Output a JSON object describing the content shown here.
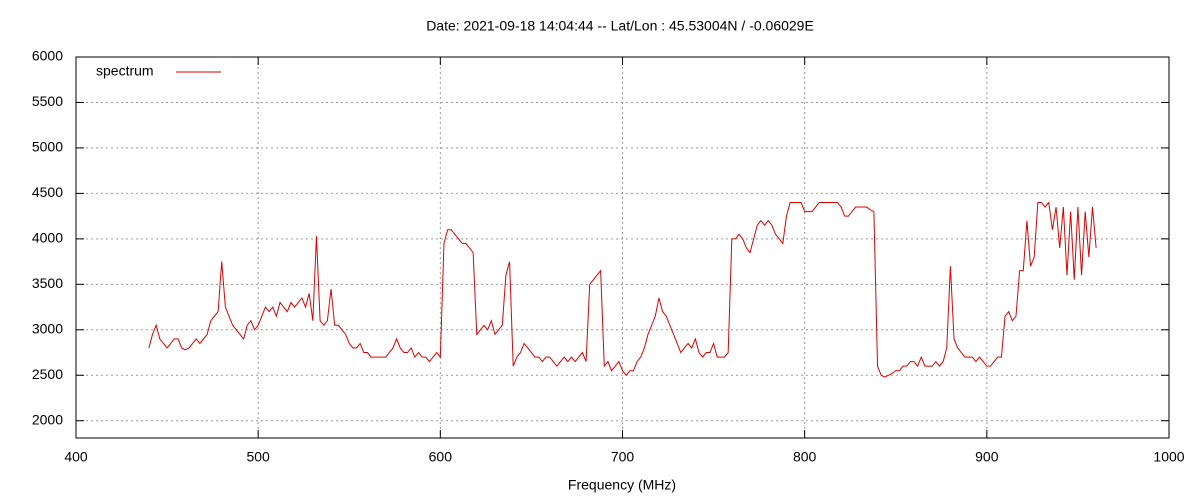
{
  "chart_data": {
    "type": "line",
    "title": "Date: 2021-09-18 14:04:44  --  Lat/Lon : 45.53004N / -0.06029E",
    "x_label": "Frequency (MHz)",
    "xlim": [
      400,
      1000
    ],
    "xticks": [
      400,
      500,
      600,
      700,
      800,
      900,
      1000
    ],
    "ylim": [
      1810,
      6000
    ],
    "yticks": [
      2000,
      2500,
      3000,
      3500,
      4000,
      4500,
      5000,
      5500,
      6000
    ],
    "grid": true,
    "legend": "top-left",
    "x": [
      440,
      442,
      444,
      446,
      448,
      450,
      452,
      454,
      456,
      458,
      460,
      462,
      464,
      466,
      468,
      470,
      472,
      474,
      476,
      478,
      480,
      482,
      484,
      486,
      488,
      490,
      492,
      494,
      496,
      498,
      500,
      502,
      504,
      506,
      508,
      510,
      512,
      514,
      516,
      518,
      520,
      522,
      524,
      526,
      528,
      530,
      532,
      534,
      536,
      538,
      540,
      542,
      544,
      546,
      548,
      550,
      552,
      554,
      556,
      558,
      560,
      562,
      564,
      566,
      568,
      570,
      572,
      574,
      576,
      578,
      580,
      582,
      584,
      586,
      588,
      590,
      592,
      594,
      596,
      598,
      600,
      602,
      604,
      606,
      608,
      610,
      612,
      614,
      616,
      618,
      620,
      622,
      624,
      626,
      628,
      630,
      632,
      634,
      636,
      638,
      640,
      642,
      644,
      646,
      648,
      650,
      652,
      654,
      656,
      658,
      660,
      662,
      664,
      666,
      668,
      670,
      672,
      674,
      676,
      678,
      680,
      682,
      684,
      686,
      688,
      690,
      692,
      694,
      696,
      698,
      700,
      702,
      704,
      706,
      708,
      710,
      712,
      714,
      716,
      718,
      720,
      722,
      724,
      726,
      728,
      730,
      732,
      734,
      736,
      738,
      740,
      742,
      744,
      746,
      748,
      750,
      752,
      754,
      756,
      758,
      760,
      762,
      764,
      766,
      768,
      770,
      772,
      774,
      776,
      778,
      780,
      782,
      784,
      786,
      788,
      790,
      792,
      794,
      796,
      798,
      800,
      802,
      804,
      806,
      808,
      810,
      812,
      814,
      816,
      818,
      820,
      822,
      824,
      826,
      828,
      830,
      832,
      834,
      836,
      838,
      840,
      842,
      844,
      846,
      848,
      850,
      852,
      854,
      856,
      858,
      860,
      862,
      864,
      866,
      868,
      870,
      872,
      874,
      876,
      878,
      880,
      882,
      884,
      886,
      888,
      890,
      892,
      894,
      896,
      898,
      900,
      902,
      904,
      906,
      908,
      910,
      912,
      914,
      916,
      918,
      920,
      922,
      924,
      926,
      928,
      930,
      932,
      934,
      936,
      938,
      940,
      942,
      944,
      946,
      948,
      950,
      952,
      954,
      956,
      958,
      960
    ],
    "series": [
      {
        "name": "spectrum",
        "color": "#e00000",
        "values": [
          2800,
          2950,
          3050,
          2900,
          2850,
          2800,
          2850,
          2900,
          2900,
          2800,
          2780,
          2800,
          2850,
          2900,
          2850,
          2900,
          2950,
          3100,
          3150,
          3200,
          3750,
          3250,
          3150,
          3050,
          3000,
          2950,
          2900,
          3050,
          3100,
          3000,
          3050,
          3150,
          3250,
          3200,
          3250,
          3150,
          3300,
          3250,
          3200,
          3300,
          3250,
          3300,
          3350,
          3250,
          3400,
          3100,
          4030,
          3100,
          3050,
          3100,
          3450,
          3050,
          3050,
          3000,
          2950,
          2850,
          2800,
          2800,
          2850,
          2750,
          2750,
          2700,
          2700,
          2700,
          2700,
          2700,
          2750,
          2800,
          2900,
          2800,
          2750,
          2750,
          2800,
          2700,
          2750,
          2700,
          2700,
          2650,
          2700,
          2750,
          2700,
          3950,
          4100,
          4100,
          4050,
          4000,
          3950,
          3950,
          3900,
          3850,
          2950,
          3000,
          3050,
          3000,
          3100,
          2950,
          3000,
          3050,
          3600,
          3750,
          2600,
          2700,
          2750,
          2850,
          2800,
          2750,
          2700,
          2700,
          2650,
          2700,
          2700,
          2650,
          2600,
          2650,
          2700,
          2650,
          2700,
          2650,
          2700,
          2750,
          2650,
          3500,
          3550,
          3600,
          3650,
          2600,
          2650,
          2550,
          2600,
          2650,
          2550,
          2500,
          2550,
          2550,
          2650,
          2700,
          2800,
          2950,
          3050,
          3150,
          3350,
          3200,
          3150,
          3050,
          2950,
          2850,
          2750,
          2800,
          2850,
          2800,
          2900,
          2750,
          2700,
          2750,
          2750,
          2850,
          2700,
          2700,
          2700,
          2750,
          4000,
          4000,
          4050,
          4000,
          3900,
          3850,
          4000,
          4150,
          4200,
          4150,
          4200,
          4150,
          4050,
          4000,
          3950,
          4250,
          4400,
          4400,
          4400,
          4400,
          4300,
          4300,
          4300,
          4350,
          4400,
          4400,
          4400,
          4400,
          4400,
          4400,
          4350,
          4250,
          4250,
          4300,
          4350,
          4350,
          4350,
          4350,
          4320,
          4300,
          2600,
          2500,
          2480,
          2500,
          2520,
          2550,
          2550,
          2600,
          2600,
          2650,
          2650,
          2600,
          2700,
          2600,
          2600,
          2600,
          2650,
          2600,
          2650,
          2800,
          3700,
          2900,
          2800,
          2750,
          2700,
          2700,
          2700,
          2650,
          2700,
          2650,
          2600,
          2600,
          2650,
          2700,
          2700,
          3150,
          3200,
          3100,
          3150,
          3650,
          3650,
          4200,
          3700,
          3800,
          4400,
          4400,
          4350,
          4400,
          4100,
          4350,
          3900,
          4350,
          3600,
          4300,
          3550,
          4350,
          3600,
          4300,
          3800,
          4350,
          3900
        ]
      }
    ]
  }
}
